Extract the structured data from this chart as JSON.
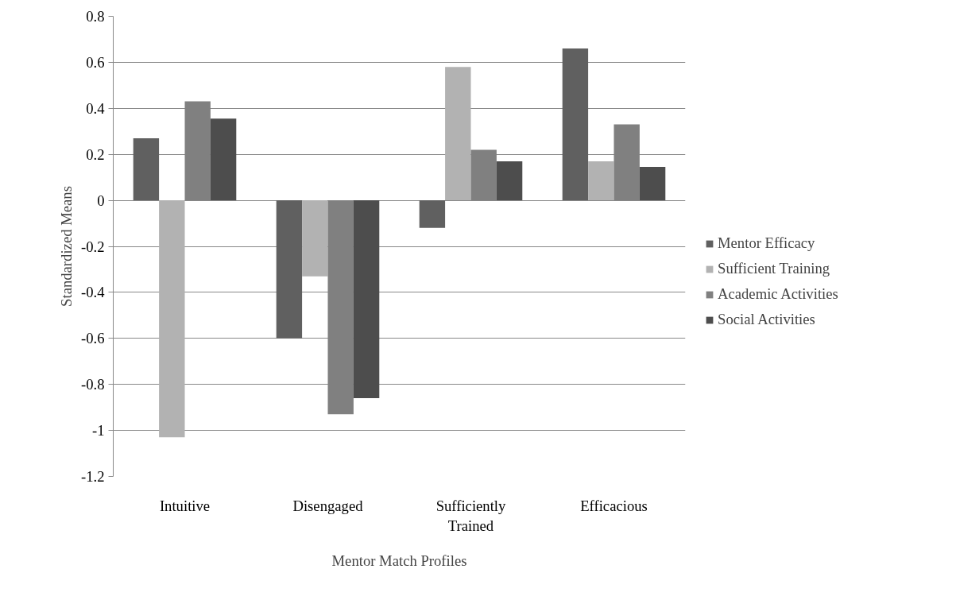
{
  "chart_data": {
    "type": "bar",
    "xlabel": "Mentor Match Profiles",
    "ylabel": "Standardized Means",
    "categories": [
      "Intuitive",
      "Disengaged",
      "Sufficiently Trained",
      "Efficacious"
    ],
    "series": [
      {
        "name": "Mentor Efficacy",
        "color": "#606060",
        "values": [
          0.27,
          -0.6,
          -0.12,
          0.66
        ]
      },
      {
        "name": "Sufficient Training",
        "color": "#b2b2b2",
        "values": [
          -1.03,
          -0.33,
          0.58,
          0.17
        ]
      },
      {
        "name": "Academic Activities",
        "color": "#808080",
        "values": [
          0.43,
          -0.93,
          0.22,
          0.33
        ]
      },
      {
        "name": "Social Activities",
        "color": "#4d4d4d",
        "values": [
          0.355,
          -0.86,
          0.17,
          0.145
        ]
      }
    ],
    "ylim": [
      -1.2,
      0.8
    ],
    "yticks": [
      {
        "value": -1.2,
        "label": "-1.2"
      },
      {
        "value": -1,
        "label": "-1"
      },
      {
        "value": -0.8,
        "label": "-0.8"
      },
      {
        "value": -0.6,
        "label": "-0.6"
      },
      {
        "value": -0.4,
        "label": "-0.4"
      },
      {
        "value": -0.2,
        "label": "-0.2"
      },
      0,
      0.2,
      0.4,
      0.6,
      0.8
    ],
    "grid": "y",
    "legend": "right"
  }
}
